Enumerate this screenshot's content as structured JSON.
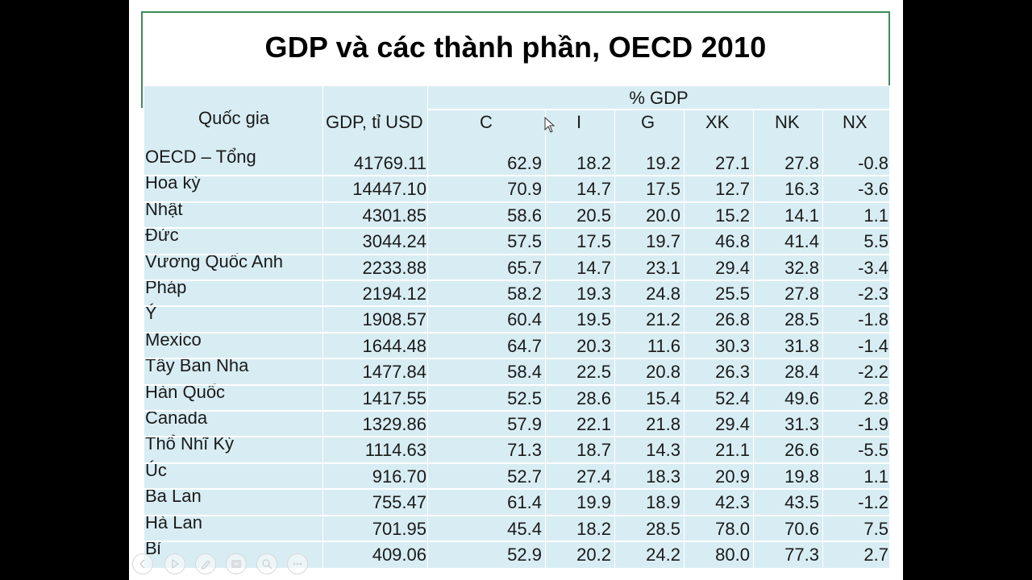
{
  "slide": {
    "title": "GDP và các thành phần, OECD 2010"
  },
  "table": {
    "country_header": "Quốc gia",
    "gdp_header": "GDP, tỉ USD",
    "pct_header": "% GDP",
    "component_headers": [
      "C",
      "I",
      "G",
      "XK",
      "NK",
      "NX"
    ],
    "rows": [
      {
        "country": "OECD – Tổng",
        "gdp": "41769.11",
        "c": "62.9",
        "i": "18.2",
        "g": "19.2",
        "xk": "27.1",
        "nk": "27.8",
        "nx": "-0.8"
      },
      {
        "country": "Hoa kỳ",
        "gdp": "14447.10",
        "c": "70.9",
        "i": "14.7",
        "g": "17.5",
        "xk": "12.7",
        "nk": "16.3",
        "nx": "-3.6"
      },
      {
        "country": "Nhật",
        "gdp": "4301.85",
        "c": "58.6",
        "i": "20.5",
        "g": "20.0",
        "xk": "15.2",
        "nk": "14.1",
        "nx": "1.1"
      },
      {
        "country": "Đức",
        "gdp": "3044.24",
        "c": "57.5",
        "i": "17.5",
        "g": "19.7",
        "xk": "46.8",
        "nk": "41.4",
        "nx": "5.5"
      },
      {
        "country": "Vương Quốc Anh",
        "gdp": "2233.88",
        "c": "65.7",
        "i": "14.7",
        "g": "23.1",
        "xk": "29.4",
        "nk": "32.8",
        "nx": "-3.4"
      },
      {
        "country": "Pháp",
        "gdp": "2194.12",
        "c": "58.2",
        "i": "19.3",
        "g": "24.8",
        "xk": "25.5",
        "nk": "27.8",
        "nx": "-2.3"
      },
      {
        "country": "Ý",
        "gdp": "1908.57",
        "c": "60.4",
        "i": "19.5",
        "g": "21.2",
        "xk": "26.8",
        "nk": "28.5",
        "nx": "-1.8"
      },
      {
        "country": "Mexico",
        "gdp": "1644.48",
        "c": "64.7",
        "i": "20.3",
        "g": "11.6",
        "xk": "30.3",
        "nk": "31.8",
        "nx": "-1.4"
      },
      {
        "country": "Tây Ban Nha",
        "gdp": "1477.84",
        "c": "58.4",
        "i": "22.5",
        "g": "20.8",
        "xk": "26.3",
        "nk": "28.4",
        "nx": "-2.2"
      },
      {
        "country": "Hàn Quốc",
        "gdp": "1417.55",
        "c": "52.5",
        "i": "28.6",
        "g": "15.4",
        "xk": "52.4",
        "nk": "49.6",
        "nx": "2.8"
      },
      {
        "country": "Canada",
        "gdp": "1329.86",
        "c": "57.9",
        "i": "22.1",
        "g": "21.8",
        "xk": "29.4",
        "nk": "31.3",
        "nx": "-1.9"
      },
      {
        "country": "Thổ Nhĩ Kỳ",
        "gdp": "1114.63",
        "c": "71.3",
        "i": "18.7",
        "g": "14.3",
        "xk": "21.1",
        "nk": "26.6",
        "nx": "-5.5"
      },
      {
        "country": "Úc",
        "gdp": "916.70",
        "c": "52.7",
        "i": "27.4",
        "g": "18.3",
        "xk": "20.9",
        "nk": "19.8",
        "nx": "1.1"
      },
      {
        "country": "Ba Lan",
        "gdp": "755.47",
        "c": "61.4",
        "i": "19.9",
        "g": "18.9",
        "xk": "42.3",
        "nk": "43.5",
        "nx": "-1.2"
      },
      {
        "country": "Hà Lan",
        "gdp": "701.95",
        "c": "45.4",
        "i": "18.2",
        "g": "28.5",
        "xk": "78.0",
        "nk": "70.6",
        "nx": "7.5"
      },
      {
        "country": "Bỉ",
        "gdp": "409.06",
        "c": "52.9",
        "i": "20.2",
        "g": "24.2",
        "xk": "80.0",
        "nk": "77.3",
        "nx": "2.7"
      }
    ]
  },
  "colors": {
    "table_fill": "#d8edf3",
    "frame": "#3c8a5a",
    "letterbox": "#000000"
  },
  "controls": [
    "previous-icon",
    "play-icon",
    "pen-icon",
    "slides-icon",
    "zoom-icon",
    "more-icon"
  ]
}
